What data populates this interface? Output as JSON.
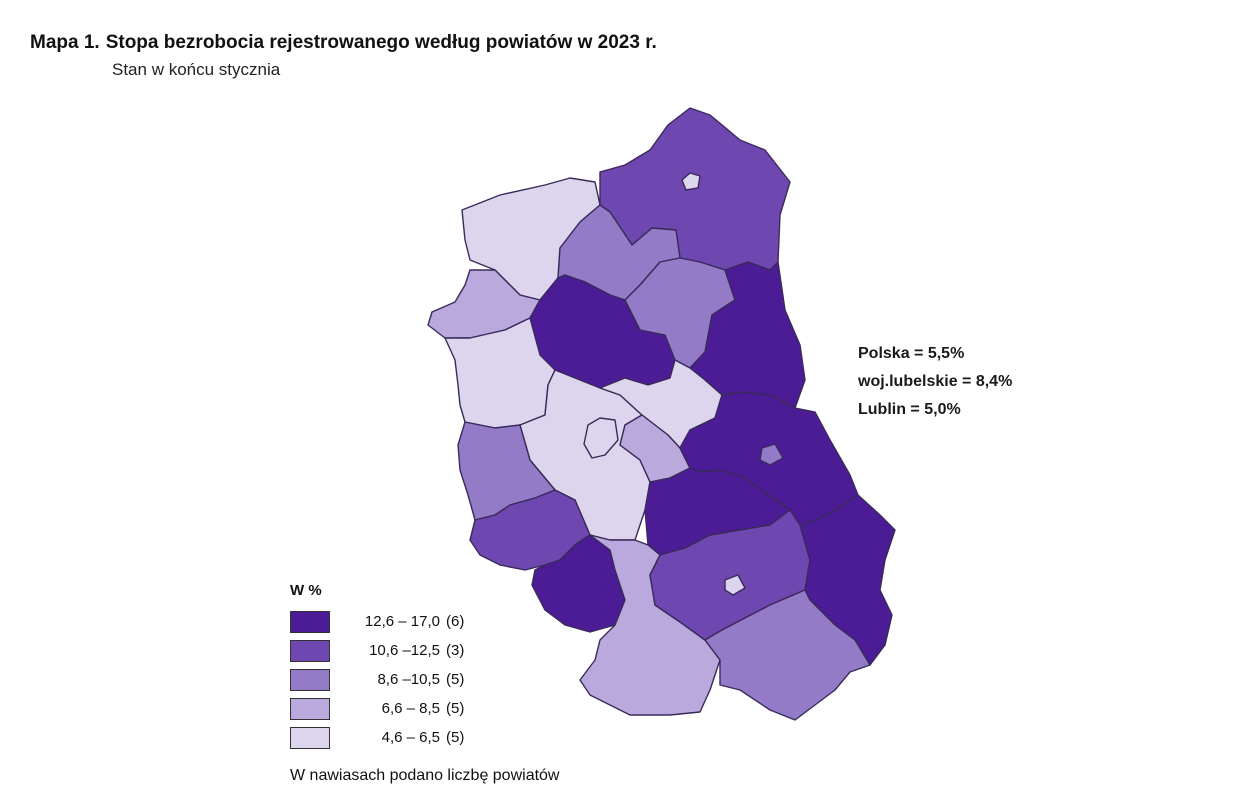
{
  "title": {
    "label": "Mapa 1.",
    "text": "Stopa bezrobocia rejestrowanego według powiatów w 2023 r."
  },
  "subtitle": "Stan w końcu stycznia",
  "stats": [
    "Polska = 5,5%",
    "woj.lubelskie = 8,4%",
    "Lublin = 5,0%"
  ],
  "legend": {
    "title": "W %",
    "classes": [
      {
        "range": "12,6 – 17,0",
        "count": "(6)",
        "color": "#4b1c96"
      },
      {
        "range": "10,6 –12,5",
        "count": "(3)",
        "color": "#6f47b0"
      },
      {
        "range": "8,6 –10,5",
        "count": "(5)",
        "color": "#937bc8"
      },
      {
        "range": "6,6 –  8,5",
        "count": "(5)",
        "color": "#b9a9dc"
      },
      {
        "range": "4,6 –  6,5",
        "count": "(5)",
        "color": "#ddd5ee"
      }
    ],
    "note": "W nawiasach podano liczbę powiatów"
  }
}
